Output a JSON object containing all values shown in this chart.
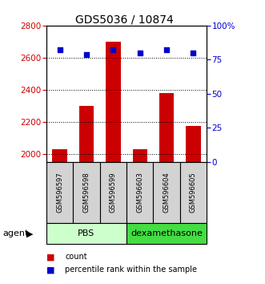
{
  "title": "GDS5036 / 10874",
  "samples": [
    "GSM596597",
    "GSM596598",
    "GSM596599",
    "GSM596603",
    "GSM596604",
    "GSM596605"
  ],
  "bar_values": [
    2030,
    2300,
    2700,
    2030,
    2380,
    2175
  ],
  "percentile_values": [
    82,
    79,
    82,
    80,
    82,
    80
  ],
  "ylim_left": [
    1950,
    2800
  ],
  "ylim_right": [
    0,
    100
  ],
  "yticks_left": [
    2000,
    2200,
    2400,
    2600,
    2800
  ],
  "yticks_right": [
    0,
    25,
    50,
    75,
    100
  ],
  "bar_color": "#cc0000",
  "percentile_color": "#0000cc",
  "bar_width": 0.55,
  "groups": [
    {
      "label": "PBS",
      "samples": [
        0,
        1,
        2
      ],
      "color": "#ccffcc"
    },
    {
      "label": "dexamethasone",
      "samples": [
        3,
        4,
        5
      ],
      "color": "#44dd44"
    }
  ],
  "group_label": "agent",
  "legend_count_label": "count",
  "legend_percentile_label": "percentile rank within the sample",
  "background_color": "#ffffff"
}
